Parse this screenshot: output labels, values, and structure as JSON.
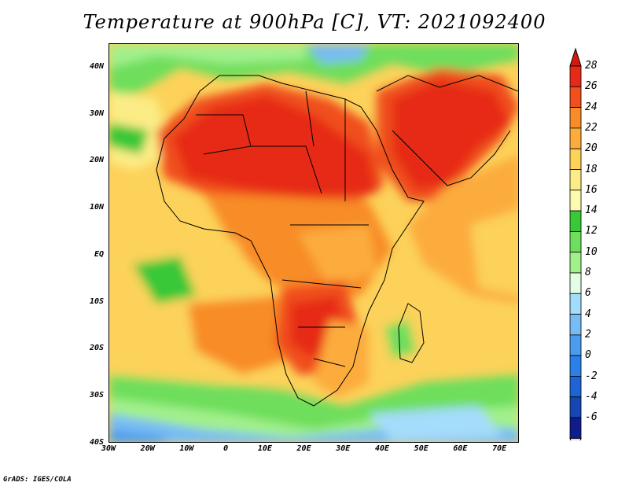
{
  "title": "Temperature at 900hPa [C], VT: 2021092400",
  "credit": "GrADS: IGES/COLA",
  "map": {
    "projection": "lat-lon",
    "lon_range": [
      -30,
      75
    ],
    "lat_range": [
      -40,
      45
    ],
    "lat_ticks": [
      {
        "value": 40,
        "label": "40N"
      },
      {
        "value": 30,
        "label": "30N"
      },
      {
        "value": 20,
        "label": "20N"
      },
      {
        "value": 10,
        "label": "10N"
      },
      {
        "value": 0,
        "label": "EQ"
      },
      {
        "value": -10,
        "label": "10S"
      },
      {
        "value": -20,
        "label": "20S"
      },
      {
        "value": -30,
        "label": "30S"
      },
      {
        "value": -40,
        "label": "40S"
      }
    ],
    "lon_ticks": [
      {
        "value": -30,
        "label": "30W"
      },
      {
        "value": -20,
        "label": "20W"
      },
      {
        "value": -10,
        "label": "10W"
      },
      {
        "value": 0,
        "label": "0"
      },
      {
        "value": 10,
        "label": "10E"
      },
      {
        "value": 20,
        "label": "20E"
      },
      {
        "value": 30,
        "label": "30E"
      },
      {
        "value": 40,
        "label": "40E"
      },
      {
        "value": 50,
        "label": "50E"
      },
      {
        "value": 60,
        "label": "60E"
      },
      {
        "value": 70,
        "label": "70E"
      }
    ]
  },
  "colorbar": {
    "levels": [
      {
        "value": 28,
        "label": "28",
        "color": "#e62a18"
      },
      {
        "value": 26,
        "label": "26",
        "color": "#f0501e"
      },
      {
        "value": 24,
        "label": "24",
        "color": "#f88c28"
      },
      {
        "value": 22,
        "label": "22",
        "color": "#fcac3c"
      },
      {
        "value": 20,
        "label": "20",
        "color": "#fcd25a"
      },
      {
        "value": 18,
        "label": "18",
        "color": "#fcec86"
      },
      {
        "value": 16,
        "label": "16",
        "color": "#fcfab0"
      },
      {
        "value": 14,
        "label": "14",
        "color": "#38c838"
      },
      {
        "value": 12,
        "label": "12",
        "color": "#6ede5c"
      },
      {
        "value": 10,
        "label": "10",
        "color": "#a2f08c"
      },
      {
        "value": 8,
        "label": "8",
        "color": "#e4fce4"
      },
      {
        "value": 6,
        "label": "6",
        "color": "#a4dcfc"
      },
      {
        "value": 4,
        "label": "4",
        "color": "#78bcf4"
      },
      {
        "value": 2,
        "label": "2",
        "color": "#4c9cee"
      },
      {
        "value": 0,
        "label": "0",
        "color": "#2a80e6"
      },
      {
        "value": -2,
        "label": "-2",
        "color": "#1e64d2"
      },
      {
        "value": -4,
        "label": "-4",
        "color": "#1646b4"
      },
      {
        "value": -6,
        "label": "-6",
        "color": "#101c8c"
      }
    ],
    "top_color": "#d41a10",
    "bottom_color": "#dcdcfa"
  }
}
